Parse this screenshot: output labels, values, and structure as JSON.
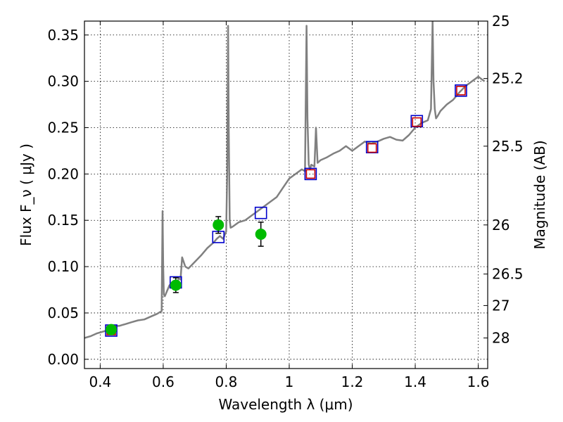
{
  "chart_data": {
    "type": "line",
    "xlabel": "Wavelength  λ (μm)",
    "ylabel": "Flux  F_ν  ( μJy )",
    "ylabel_right": "Magnitude (AB)",
    "xlim": [
      0.35,
      1.63
    ],
    "ylim": [
      -0.01,
      0.365
    ],
    "grid": true,
    "x_ticks": [
      0.4,
      0.6,
      0.8,
      1.0,
      1.2,
      1.4,
      1.6
    ],
    "x_tick_labels": [
      "0.4",
      "0.6",
      "0.8",
      "1",
      "1.2",
      "1.4",
      "1.6"
    ],
    "y_ticks": [
      0.0,
      0.05,
      0.1,
      0.15,
      0.2,
      0.25,
      0.3,
      0.35
    ],
    "y_tick_labels": [
      "0.00",
      "0.05",
      "0.10",
      "0.15",
      "0.20",
      "0.25",
      "0.30",
      "0.35"
    ],
    "right_ticks": [
      {
        "label": "25",
        "flux": 0.365
      },
      {
        "label": "25.2",
        "flux": 0.303
      },
      {
        "label": "25.5",
        "flux": 0.23
      },
      {
        "label": "26",
        "flux": 0.145
      },
      {
        "label": "26.5",
        "flux": 0.092
      },
      {
        "label": "27",
        "flux": 0.058
      },
      {
        "label": "28",
        "flux": 0.023
      }
    ],
    "series": [
      {
        "type": "line",
        "color": "#808080",
        "x": [
          0.35,
          0.37,
          0.39,
          0.41,
          0.42,
          0.43,
          0.44,
          0.45,
          0.46,
          0.47,
          0.48,
          0.5,
          0.52,
          0.54,
          0.56,
          0.58,
          0.595,
          0.598,
          0.6,
          0.602,
          0.605,
          0.61,
          0.62,
          0.63,
          0.64,
          0.65,
          0.655,
          0.66,
          0.67,
          0.68,
          0.7,
          0.72,
          0.74,
          0.76,
          0.77,
          0.78,
          0.79,
          0.8,
          0.803,
          0.806,
          0.808,
          0.811,
          0.814,
          0.82,
          0.84,
          0.86,
          0.88,
          0.9,
          0.92,
          0.94,
          0.96,
          0.98,
          1.0,
          1.02,
          1.04,
          1.05,
          1.055,
          1.058,
          1.062,
          1.066,
          1.07,
          1.08,
          1.085,
          1.09,
          1.1,
          1.12,
          1.14,
          1.16,
          1.18,
          1.2,
          1.22,
          1.24,
          1.26,
          1.28,
          1.3,
          1.32,
          1.34,
          1.36,
          1.38,
          1.4,
          1.42,
          1.44,
          1.45,
          1.455,
          1.458,
          1.462,
          1.466,
          1.47,
          1.48,
          1.5,
          1.52,
          1.54,
          1.56,
          1.58,
          1.6,
          1.62
        ],
        "y": [
          0.023,
          0.025,
          0.028,
          0.03,
          0.031,
          0.032,
          0.034,
          0.036,
          0.036,
          0.037,
          0.038,
          0.04,
          0.042,
          0.043,
          0.046,
          0.049,
          0.052,
          0.16,
          0.1,
          0.07,
          0.068,
          0.072,
          0.08,
          0.082,
          0.079,
          0.088,
          0.086,
          0.11,
          0.1,
          0.098,
          0.105,
          0.112,
          0.12,
          0.126,
          0.13,
          0.133,
          0.13,
          0.138,
          0.2,
          0.36,
          0.25,
          0.15,
          0.142,
          0.143,
          0.148,
          0.15,
          0.155,
          0.16,
          0.165,
          0.17,
          0.175,
          0.185,
          0.195,
          0.2,
          0.205,
          0.203,
          0.36,
          0.26,
          0.21,
          0.205,
          0.21,
          0.208,
          0.25,
          0.212,
          0.215,
          0.218,
          0.222,
          0.225,
          0.23,
          0.225,
          0.23,
          0.235,
          0.233,
          0.235,
          0.238,
          0.24,
          0.237,
          0.236,
          0.242,
          0.25,
          0.255,
          0.258,
          0.27,
          0.365,
          0.3,
          0.27,
          0.26,
          0.262,
          0.268,
          0.275,
          0.28,
          0.288,
          0.295,
          0.3,
          0.305,
          0.3
        ]
      },
      {
        "type": "scatter",
        "marker": "square",
        "color": "#0000cc",
        "x": [
          0.435,
          0.64,
          0.775,
          0.91,
          1.068,
          1.263,
          1.405,
          1.545
        ],
        "y": [
          0.031,
          0.083,
          0.132,
          0.158,
          0.2,
          0.229,
          0.257,
          0.29
        ]
      },
      {
        "type": "scatter",
        "marker": "square",
        "color": "#cc0000",
        "x": [
          0.435,
          1.068,
          1.263,
          1.405,
          1.545
        ],
        "y": [
          0.031,
          0.2,
          0.228,
          0.256,
          0.29
        ]
      },
      {
        "type": "errorbar",
        "marker": "circle",
        "color": "#00bb00",
        "x": [
          0.435,
          0.64,
          0.775,
          0.91
        ],
        "y": [
          0.032,
          0.08,
          0.145,
          0.135
        ],
        "yerr": [
          0.002,
          0.008,
          0.009,
          0.013
        ]
      }
    ]
  }
}
